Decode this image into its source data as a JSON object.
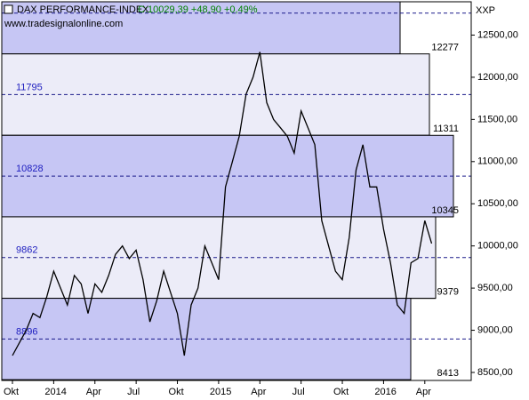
{
  "chart_data": {
    "type": "line",
    "title": "DAX PERFORMANCE-INDEX",
    "subtitle": "C:10029,39 +48,90 +0,49%",
    "source": "www.tradesignalonline.com",
    "unit_label": "XXP",
    "color": "#000000",
    "categories": [
      "Okt",
      null,
      null,
      null,
      null,
      null,
      "2014",
      null,
      null,
      null,
      null,
      null,
      "Apr",
      null,
      null,
      null,
      null,
      null,
      "Jul",
      null,
      null,
      null,
      null,
      null,
      "Okt",
      null,
      null,
      null,
      null,
      null,
      "2015",
      null,
      null,
      null,
      null,
      null,
      "Apr",
      null,
      null,
      null,
      null,
      null,
      "Jul",
      null,
      null,
      null,
      null,
      null,
      "Okt",
      null,
      null,
      null,
      null,
      null,
      "2016",
      null,
      null,
      null,
      null,
      null,
      "Apr",
      null
    ],
    "values": [
      8700,
      8850,
      9000,
      9200,
      9150,
      9400,
      9700,
      9500,
      9300,
      9650,
      9550,
      9200,
      9550,
      9450,
      9650,
      9900,
      10000,
      9850,
      9950,
      9600,
      9100,
      9350,
      9700,
      9450,
      9200,
      8700,
      9300,
      9500,
      10000,
      9800,
      9600,
      10700,
      11000,
      11300,
      11800,
      12000,
      12300,
      11700,
      11500,
      11400,
      11300,
      11100,
      11600,
      11400,
      11200,
      10300,
      10000,
      9700,
      9600,
      10100,
      10900,
      11200,
      10700,
      10700,
      10200,
      9800,
      9300,
      9200,
      9800,
      9850,
      10300,
      10029
    ],
    "ylim": [
      8405,
      12895
    ],
    "yticks": [
      {
        "value": 8500,
        "label": "8500,00"
      },
      {
        "value": 9000,
        "label": "9000,00"
      },
      {
        "value": 9500,
        "label": "9500,00"
      },
      {
        "value": 10000,
        "label": "10000,00"
      },
      {
        "value": 10500,
        "label": "10500,00"
      },
      {
        "value": 11000,
        "label": "11000,00"
      },
      {
        "value": 11500,
        "label": "11500,00"
      },
      {
        "value": 12000,
        "label": "12000,00"
      },
      {
        "value": 12500,
        "label": "12500,00"
      }
    ],
    "levels": [
      12277,
      11311,
      10345,
      9379,
      8413
    ],
    "midlines": [
      11795,
      10828,
      9862,
      8896
    ],
    "top_midline": 12760
  }
}
